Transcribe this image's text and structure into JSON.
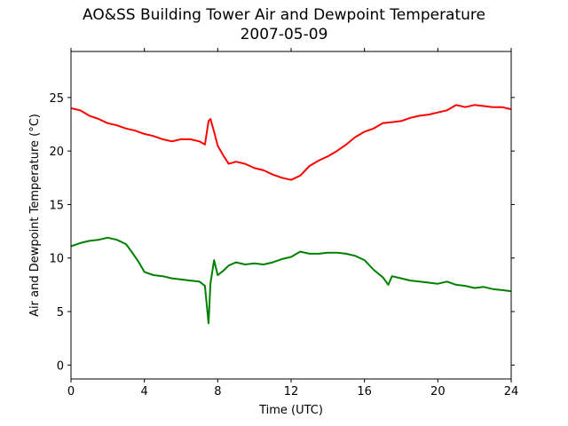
{
  "chart_data": {
    "type": "line",
    "title": "AO&SS Building Tower Air and Dewpoint Temperature",
    "subtitle": "2007-05-09",
    "xlabel": "Time (UTC)",
    "ylabel": "Air and Dewpoint Temperature (°C)",
    "xlim": [
      0,
      24
    ],
    "ylim": [
      -1.3,
      29.3
    ],
    "xticks": [
      0,
      4,
      8,
      12,
      16,
      20,
      24
    ],
    "yticks": [
      0,
      5,
      10,
      15,
      20,
      25
    ],
    "grid": false,
    "series": [
      {
        "color": "#ff0000",
        "x": [
          0,
          0.5,
          1.0,
          1.5,
          2.0,
          2.5,
          3.0,
          3.5,
          4.0,
          4.5,
          5.0,
          5.5,
          6.0,
          6.5,
          7.0,
          7.3,
          7.5,
          7.6,
          7.8,
          8.0,
          8.3,
          8.6,
          9.0,
          9.5,
          10.0,
          10.5,
          11.0,
          11.5,
          12.0,
          12.5,
          13.0,
          13.5,
          14.0,
          14.5,
          15.0,
          15.5,
          16.0,
          16.5,
          17.0,
          17.5,
          18.0,
          18.5,
          19.0,
          19.5,
          20.0,
          20.5,
          21.0,
          21.5,
          22.0,
          22.5,
          23.0,
          23.5,
          24.0
        ],
        "values": [
          24.0,
          23.8,
          23.3,
          23.0,
          22.6,
          22.4,
          22.1,
          21.9,
          21.6,
          21.4,
          21.1,
          20.9,
          21.1,
          21.1,
          20.9,
          20.6,
          22.8,
          23.0,
          21.8,
          20.5,
          19.6,
          18.8,
          19.0,
          18.8,
          18.4,
          18.2,
          17.8,
          17.5,
          17.3,
          17.7,
          18.6,
          19.1,
          19.5,
          20.0,
          20.6,
          21.3,
          21.8,
          22.1,
          22.6,
          22.7,
          22.8,
          23.1,
          23.3,
          23.4,
          23.6,
          23.8,
          24.3,
          24.1,
          24.3,
          24.2,
          24.1,
          24.1,
          23.9
        ]
      },
      {
        "color": "#008000",
        "x": [
          0,
          0.5,
          1.0,
          1.5,
          2.0,
          2.5,
          3.0,
          3.3,
          3.7,
          4.0,
          4.5,
          5.0,
          5.5,
          6.0,
          6.5,
          7.0,
          7.3,
          7.5,
          7.6,
          7.8,
          8.0,
          8.3,
          8.6,
          9.0,
          9.5,
          10.0,
          10.5,
          11.0,
          11.5,
          12.0,
          12.5,
          13.0,
          13.5,
          14.0,
          14.5,
          15.0,
          15.5,
          16.0,
          16.5,
          17.0,
          17.3,
          17.5,
          18.0,
          18.5,
          19.0,
          19.5,
          20.0,
          20.5,
          21.0,
          21.5,
          22.0,
          22.5,
          23.0,
          23.5,
          24.0
        ],
        "values": [
          11.1,
          11.4,
          11.6,
          11.7,
          11.9,
          11.7,
          11.3,
          10.6,
          9.6,
          8.7,
          8.4,
          8.3,
          8.1,
          8.0,
          7.9,
          7.8,
          7.4,
          3.9,
          7.6,
          9.8,
          8.4,
          8.8,
          9.3,
          9.6,
          9.4,
          9.5,
          9.4,
          9.6,
          9.9,
          10.1,
          10.6,
          10.4,
          10.4,
          10.5,
          10.5,
          10.4,
          10.2,
          9.8,
          8.9,
          8.2,
          7.5,
          8.3,
          8.1,
          7.9,
          7.8,
          7.7,
          7.6,
          7.8,
          7.5,
          7.4,
          7.2,
          7.3,
          7.1,
          7.0,
          6.9
        ]
      }
    ]
  }
}
